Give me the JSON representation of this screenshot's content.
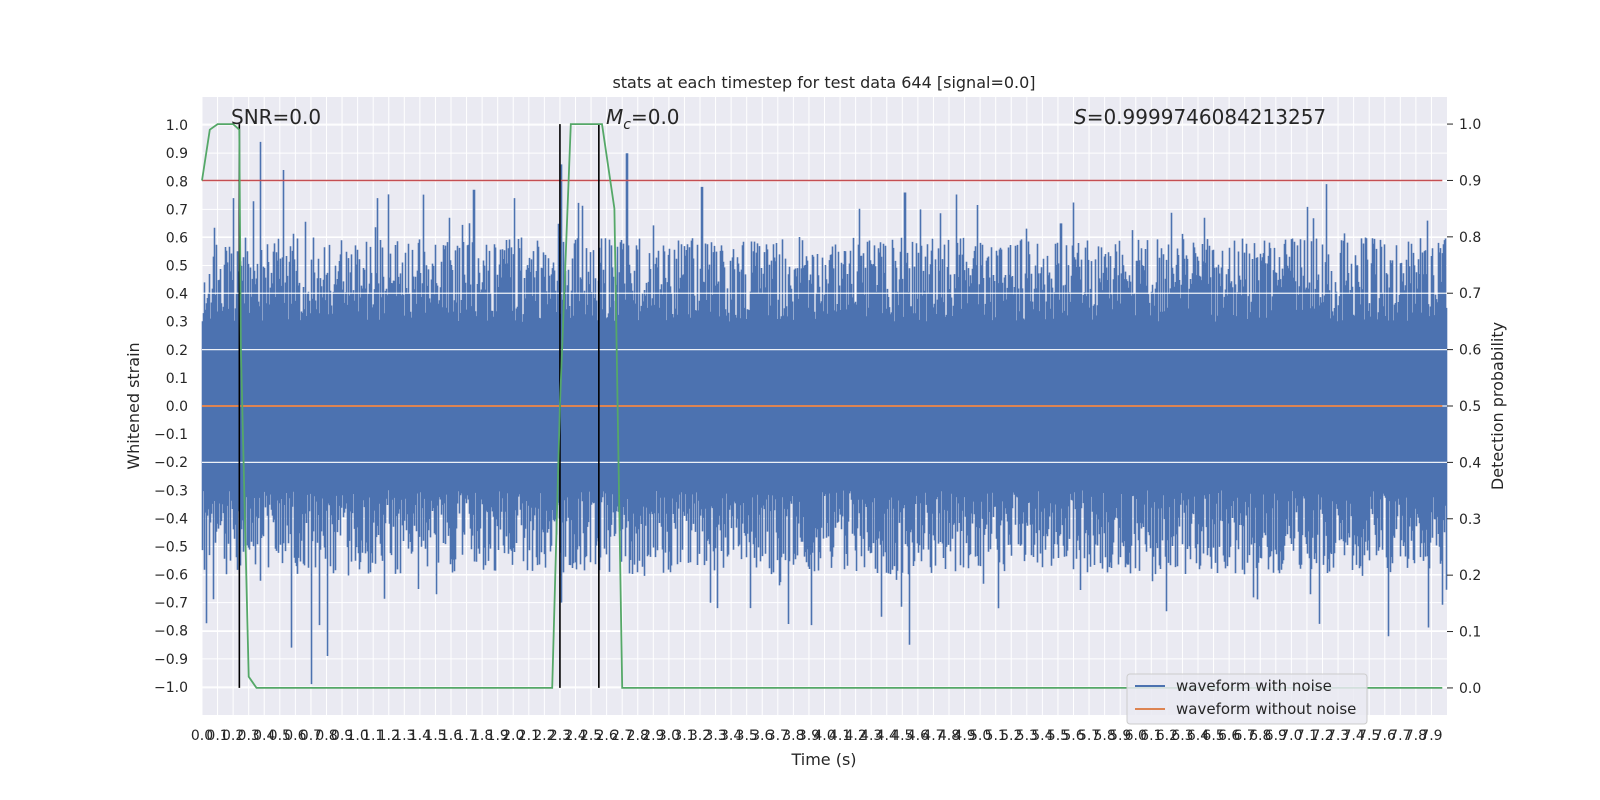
{
  "chart_data": {
    "type": "line",
    "title": "stats at each timestep for test data 644 [signal=0.0]",
    "xlabel": "Time (s)",
    "ylabel": "Whitened strain",
    "y2label": "Detection probability",
    "xlim": [
      0.0,
      8.0
    ],
    "ylim": [
      -1.1,
      1.1
    ],
    "y2lim": [
      -0.048,
      1.048
    ],
    "grid": true,
    "legend_position": "lower-right",
    "annotations": {
      "snr": "SNR=0.0",
      "mc_sym": "M",
      "mc_sub": "c",
      "mc_val": "=0.0",
      "s_sym": "S",
      "s_val": "=0.9999746084213257"
    },
    "x_ticks": [
      0.0,
      0.1,
      0.2,
      0.3,
      0.4,
      0.5,
      0.6,
      0.7,
      0.8,
      0.9,
      1.0,
      1.1,
      1.2,
      1.3,
      1.4,
      1.5,
      1.6,
      1.7,
      1.8,
      1.9,
      2.0,
      2.1,
      2.2,
      2.3,
      2.4,
      2.5,
      2.6,
      2.7,
      2.8,
      2.9,
      3.0,
      3.1,
      3.2,
      3.3,
      3.4,
      3.5,
      3.6,
      3.7,
      3.8,
      3.9,
      4.0,
      4.1,
      4.2,
      4.3,
      4.4,
      4.5,
      4.6,
      4.7,
      4.8,
      4.9,
      5.0,
      5.1,
      5.2,
      5.3,
      5.4,
      5.5,
      5.6,
      5.7,
      5.8,
      5.9,
      6.0,
      6.1,
      6.2,
      6.3,
      6.4,
      6.5,
      6.6,
      6.7,
      6.8,
      6.9,
      7.0,
      7.1,
      7.2,
      7.3,
      7.4,
      7.5,
      7.6,
      7.7,
      7.8,
      7.9
    ],
    "y_ticks": [
      -1.0,
      -0.9,
      -0.8,
      -0.7,
      -0.6,
      -0.5,
      -0.4,
      -0.3,
      -0.2,
      -0.1,
      0.0,
      0.1,
      0.2,
      0.3,
      0.4,
      0.5,
      0.6,
      0.7,
      0.8,
      0.9,
      1.0
    ],
    "y2_ticks": [
      0.0,
      0.1,
      0.2,
      0.3,
      0.4,
      0.5,
      0.6,
      0.7,
      0.8,
      0.9,
      1.0
    ],
    "series": [
      {
        "name": "waveform with noise",
        "color": "#4c72b0",
        "axis": "left",
        "kind": "dense-noise",
        "peaks_max": [
          [
            0.2,
            0.74
          ],
          [
            0.37,
            0.94
          ],
          [
            0.52,
            0.84
          ],
          [
            0.71,
            0.6
          ],
          [
            1.12,
            0.74
          ],
          [
            1.74,
            0.77
          ],
          [
            2.0,
            0.74
          ],
          [
            2.3,
            0.86
          ],
          [
            2.72,
            0.9
          ],
          [
            3.2,
            0.78
          ],
          [
            4.5,
            0.76
          ],
          [
            4.6,
            0.7
          ],
          [
            5.5,
            0.65
          ],
          [
            7.2,
            0.79
          ],
          [
            7.85,
            0.66
          ]
        ],
        "peaks_min": [
          [
            0.57,
            -0.86
          ],
          [
            0.7,
            -0.99
          ],
          [
            0.8,
            -0.89
          ],
          [
            0.75,
            -0.78
          ],
          [
            1.5,
            -0.67
          ],
          [
            2.3,
            -0.7
          ],
          [
            3.9,
            -0.78
          ],
          [
            4.35,
            -0.75
          ],
          [
            4.53,
            -0.85
          ],
          [
            5.1,
            -0.72
          ],
          [
            7.6,
            -0.82
          ],
          [
            7.1,
            -0.67
          ]
        ]
      },
      {
        "name": "waveform without noise",
        "color": "#dd8452",
        "axis": "left",
        "x": [
          0.0,
          7.97
        ],
        "y": [
          0.0,
          0.0
        ]
      },
      {
        "name": "",
        "color": "#55a868",
        "axis": "right",
        "x": [
          0.0,
          0.05,
          0.1,
          0.15,
          0.2,
          0.24,
          0.25,
          0.3,
          0.35,
          0.45,
          0.6,
          0.8,
          1.0,
          1.5,
          2.0,
          2.25,
          2.3,
          2.37,
          2.45,
          2.55,
          2.57,
          2.65,
          2.7,
          2.8,
          3.5,
          5.0,
          6.5,
          7.97
        ],
        "y": [
          0.9,
          0.99,
          1.0,
          1.0,
          1.0,
          0.99,
          0.6,
          0.02,
          0.0,
          0.0,
          0.0,
          0.0,
          0.0,
          0.0,
          0.0,
          0.0,
          0.5,
          1.0,
          1.0,
          1.0,
          1.0,
          0.85,
          0.0,
          0.0,
          0.0,
          0.0,
          0.0,
          0.0
        ]
      }
    ],
    "threshold_line": {
      "axis": "right",
      "value": 0.9,
      "color": "#c44e52"
    },
    "vertical_lines": [
      0.24,
      2.3,
      2.55
    ],
    "vertical_line_color": "#000000"
  }
}
